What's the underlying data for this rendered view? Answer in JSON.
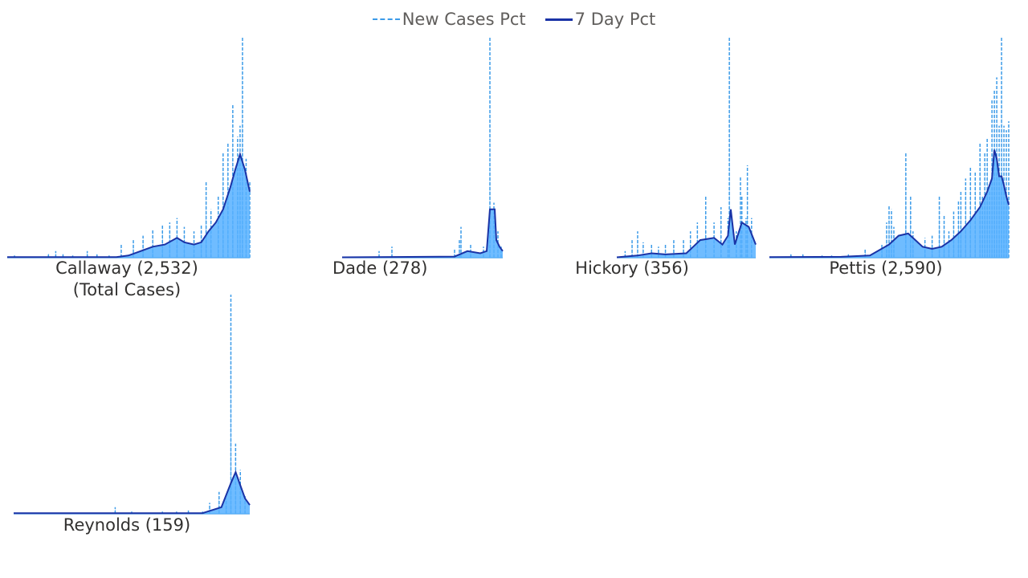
{
  "legend": {
    "items": [
      {
        "label": "New Cases Pct",
        "style": "dashed",
        "color": "#3c9be8"
      },
      {
        "label": "7 Day Pct",
        "style": "solid",
        "color": "#1a33a6"
      }
    ]
  },
  "colors": {
    "area": "#56b0ff",
    "new_cases_line": "#3c9be8",
    "seven_day_line": "#1a33a6"
  },
  "chart_data": [
    {
      "type": "area",
      "county": "Callaway",
      "label": "Callaway (2,532)",
      "sublabel": "(Total Cases)",
      "ylim": [
        0,
        100
      ],
      "series_names": [
        "New Cases Pct",
        "7 Day Pct"
      ],
      "spikes": [
        [
          0.03,
          1,
          3
        ],
        [
          0.17,
          2,
          4
        ],
        [
          0.2,
          3,
          2
        ],
        [
          0.23,
          2,
          3
        ],
        [
          0.27,
          1,
          3
        ],
        [
          0.33,
          3,
          3
        ],
        [
          0.37,
          2,
          2
        ],
        [
          0.42,
          1,
          2
        ],
        [
          0.47,
          6,
          1
        ],
        [
          0.52,
          8,
          2
        ],
        [
          0.56,
          10,
          2
        ],
        [
          0.6,
          13,
          2
        ],
        [
          0.64,
          15,
          2
        ],
        [
          0.67,
          16,
          2
        ],
        [
          0.7,
          18,
          2
        ],
        [
          0.73,
          14,
          2
        ],
        [
          0.77,
          12,
          1
        ],
        [
          0.8,
          15,
          2
        ],
        [
          0.82,
          35,
          2
        ],
        [
          0.84,
          22,
          2
        ],
        [
          0.87,
          28,
          2
        ],
        [
          0.89,
          48,
          2
        ],
        [
          0.91,
          52,
          2
        ],
        [
          0.93,
          70,
          2
        ],
        [
          0.95,
          55,
          2
        ],
        [
          0.96,
          60,
          2
        ],
        [
          0.97,
          100,
          2
        ],
        [
          0.985,
          45,
          2
        ],
        [
          1.0,
          35,
          1
        ]
      ],
      "ma_points": [
        [
          0,
          0.3
        ],
        [
          0.45,
          0.3
        ],
        [
          0.5,
          1
        ],
        [
          0.55,
          3
        ],
        [
          0.6,
          5
        ],
        [
          0.65,
          6
        ],
        [
          0.7,
          9
        ],
        [
          0.73,
          7
        ],
        [
          0.77,
          6
        ],
        [
          0.8,
          7
        ],
        [
          0.83,
          12
        ],
        [
          0.86,
          16
        ],
        [
          0.89,
          22
        ],
        [
          0.92,
          32
        ],
        [
          0.94,
          40
        ],
        [
          0.96,
          47
        ],
        [
          0.98,
          40
        ],
        [
          1.0,
          30
        ]
      ]
    },
    {
      "type": "area",
      "county": "Dade",
      "label": "Dade (278)",
      "sublabel": "",
      "ylim": [
        0,
        100
      ],
      "series_names": [
        "New Cases Pct",
        "7 Day Pct"
      ],
      "spikes": [
        [
          0.23,
          3,
          2
        ],
        [
          0.31,
          5,
          2
        ],
        [
          0.7,
          4,
          2
        ],
        [
          0.73,
          8,
          2
        ],
        [
          0.74,
          14,
          2
        ],
        [
          0.8,
          6,
          2
        ],
        [
          0.88,
          5,
          2
        ],
        [
          0.92,
          100,
          2
        ],
        [
          0.945,
          25,
          2
        ],
        [
          0.97,
          12,
          2
        ],
        [
          0.99,
          5,
          2
        ]
      ],
      "ma_points": [
        [
          0,
          0.2
        ],
        [
          0.7,
          0.5
        ],
        [
          0.78,
          3
        ],
        [
          0.86,
          2
        ],
        [
          0.9,
          3
        ],
        [
          0.92,
          22
        ],
        [
          0.95,
          22
        ],
        [
          0.96,
          8
        ],
        [
          0.98,
          5
        ],
        [
          1.0,
          3
        ]
      ]
    },
    {
      "type": "area",
      "county": "Hickory",
      "label": "Hickory (356)",
      "sublabel": "",
      "ylim": [
        0,
        100
      ],
      "series_names": [
        "New Cases Pct",
        "7 Day Pct"
      ],
      "spikes": [
        [
          0.06,
          3,
          2
        ],
        [
          0.11,
          8,
          2
        ],
        [
          0.15,
          12,
          2
        ],
        [
          0.19,
          7,
          2
        ],
        [
          0.25,
          6,
          2
        ],
        [
          0.3,
          5,
          2
        ],
        [
          0.35,
          6,
          2
        ],
        [
          0.41,
          8,
          2
        ],
        [
          0.48,
          8,
          2
        ],
        [
          0.53,
          12,
          2
        ],
        [
          0.58,
          16,
          2
        ],
        [
          0.64,
          28,
          2
        ],
        [
          0.7,
          16,
          2
        ],
        [
          0.75,
          23,
          2
        ],
        [
          0.8,
          18,
          2
        ],
        [
          0.86,
          12,
          2
        ],
        [
          0.9,
          28,
          2
        ],
        [
          0.93,
          18,
          2
        ],
        [
          0.97,
          18,
          2
        ],
        [
          0.81,
          100,
          2
        ],
        [
          0.89,
          37,
          2
        ],
        [
          0.94,
          42,
          2
        ]
      ],
      "ma_points": [
        [
          0,
          0.2
        ],
        [
          0.15,
          1
        ],
        [
          0.25,
          2
        ],
        [
          0.35,
          1.5
        ],
        [
          0.5,
          2
        ],
        [
          0.55,
          5
        ],
        [
          0.6,
          8
        ],
        [
          0.7,
          9
        ],
        [
          0.76,
          6
        ],
        [
          0.8,
          10
        ],
        [
          0.82,
          22
        ],
        [
          0.85,
          6
        ],
        [
          0.9,
          16
        ],
        [
          0.95,
          14
        ],
        [
          1.0,
          6
        ]
      ]
    },
    {
      "type": "area",
      "county": "Pettis",
      "label": "Pettis (2,590)",
      "sublabel": "",
      "ylim": [
        0,
        100
      ],
      "series_names": [
        "New Cases Pct",
        "7 Day Pct"
      ],
      "spikes": [
        [
          0.09,
          2,
          2
        ],
        [
          0.14,
          2,
          2
        ],
        [
          0.22,
          1,
          1
        ],
        [
          0.26,
          1,
          1
        ],
        [
          0.33,
          2,
          2
        ],
        [
          0.4,
          4,
          2
        ],
        [
          0.47,
          6,
          2
        ],
        [
          0.49,
          16,
          2
        ],
        [
          0.5,
          24,
          2
        ],
        [
          0.51,
          22,
          2
        ],
        [
          0.52,
          14,
          2
        ],
        [
          0.57,
          48,
          2
        ],
        [
          0.59,
          28,
          2
        ],
        [
          0.6,
          12,
          2
        ],
        [
          0.65,
          9,
          2
        ],
        [
          0.68,
          10,
          2
        ],
        [
          0.71,
          28,
          2
        ],
        [
          0.73,
          19,
          2
        ],
        [
          0.75,
          12,
          2
        ],
        [
          0.77,
          21,
          2
        ],
        [
          0.79,
          26,
          2
        ],
        [
          0.8,
          30,
          2
        ],
        [
          0.82,
          36,
          2
        ],
        [
          0.84,
          41,
          2
        ],
        [
          0.86,
          39,
          2
        ],
        [
          0.88,
          52,
          2
        ],
        [
          0.89,
          28,
          2
        ],
        [
          0.9,
          48,
          2
        ],
        [
          0.91,
          54,
          2
        ],
        [
          0.92,
          30,
          2
        ],
        [
          0.93,
          72,
          2
        ],
        [
          0.94,
          76,
          2
        ],
        [
          0.95,
          82,
          2
        ],
        [
          0.96,
          60,
          2
        ],
        [
          0.97,
          100,
          2
        ],
        [
          0.98,
          60,
          2
        ],
        [
          0.99,
          58,
          2
        ],
        [
          1.0,
          62,
          1
        ]
      ],
      "ma_points": [
        [
          0,
          0.3
        ],
        [
          0.3,
          0.4
        ],
        [
          0.42,
          1
        ],
        [
          0.5,
          6
        ],
        [
          0.54,
          10
        ],
        [
          0.58,
          11
        ],
        [
          0.61,
          8
        ],
        [
          0.64,
          5
        ],
        [
          0.68,
          4
        ],
        [
          0.72,
          5
        ],
        [
          0.76,
          8
        ],
        [
          0.8,
          12
        ],
        [
          0.84,
          17
        ],
        [
          0.88,
          23
        ],
        [
          0.91,
          30
        ],
        [
          0.93,
          36
        ],
        [
          0.94,
          49
        ],
        [
          0.95,
          45
        ],
        [
          0.96,
          37
        ],
        [
          0.97,
          37
        ],
        [
          0.98,
          33
        ],
        [
          0.99,
          28
        ],
        [
          1.0,
          24
        ]
      ]
    },
    {
      "type": "area",
      "county": "Reynolds",
      "label": "Reynolds (159)",
      "sublabel": "",
      "ylim": [
        0,
        100
      ],
      "series_names": [
        "New Cases Pct",
        "7 Day Pct"
      ],
      "spikes": [
        [
          0.43,
          3,
          2
        ],
        [
          0.5,
          1,
          1
        ],
        [
          0.63,
          1,
          1
        ],
        [
          0.69,
          1,
          1
        ],
        [
          0.74,
          2,
          1
        ],
        [
          0.8,
          1,
          2
        ],
        [
          0.83,
          5,
          2
        ],
        [
          0.87,
          10,
          2
        ],
        [
          0.9,
          7,
          2
        ],
        [
          0.92,
          100,
          2
        ],
        [
          0.94,
          32,
          2
        ],
        [
          0.96,
          20,
          2
        ],
        [
          0.98,
          8,
          2
        ]
      ],
      "ma_points": [
        [
          0,
          0.3
        ],
        [
          0.8,
          0.3
        ],
        [
          0.88,
          3
        ],
        [
          0.92,
          14
        ],
        [
          0.94,
          19
        ],
        [
          0.96,
          13
        ],
        [
          0.98,
          7
        ],
        [
          1.0,
          4
        ]
      ]
    }
  ]
}
